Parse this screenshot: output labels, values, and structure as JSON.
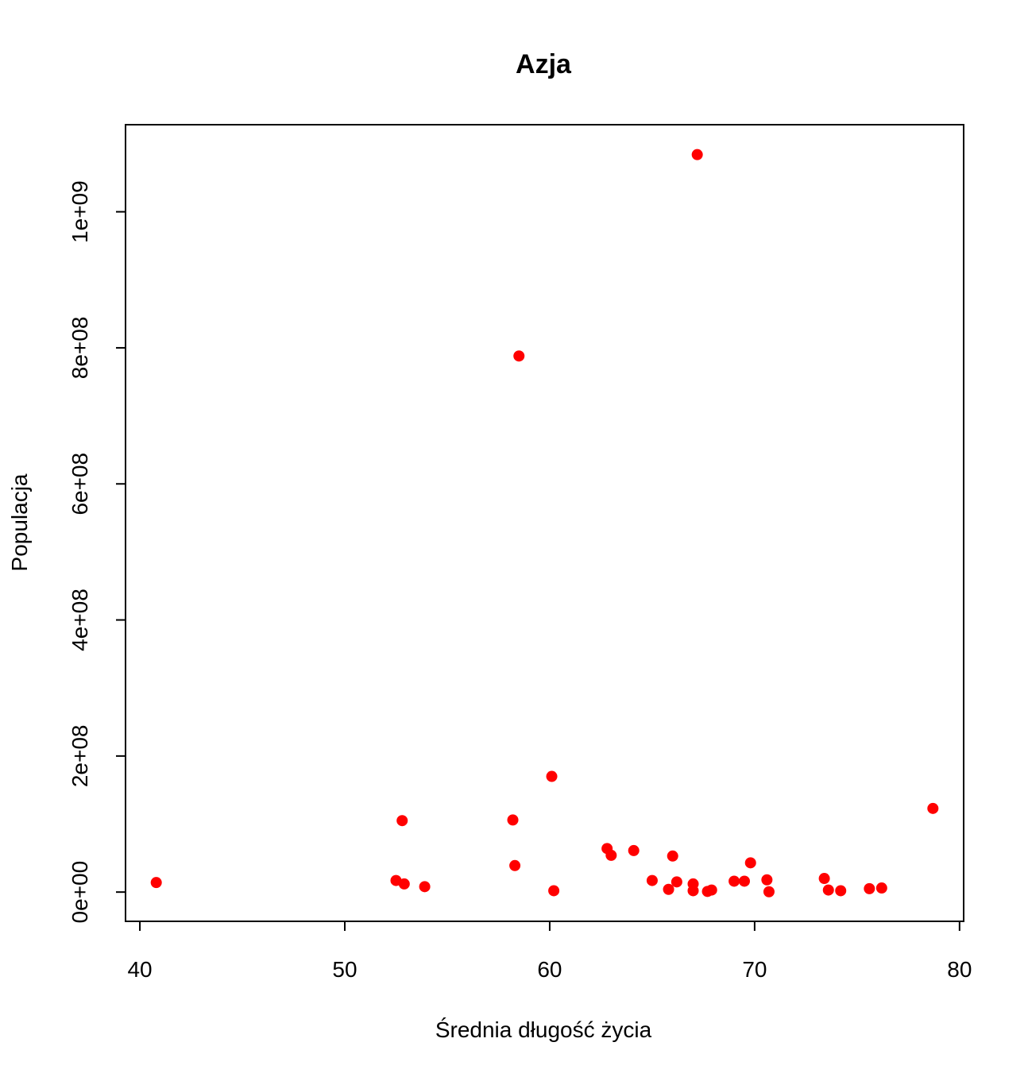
{
  "chart_data": {
    "type": "scatter",
    "title": "Azja",
    "xlabel": "Średnia długość życia",
    "ylabel": "Populacja",
    "xlim": [
      39.3,
      80.2
    ],
    "ylim": [
      -43000000,
      1128000000
    ],
    "x_ticks": [
      {
        "value": 40,
        "label": "40"
      },
      {
        "value": 50,
        "label": "50"
      },
      {
        "value": 60,
        "label": "60"
      },
      {
        "value": 70,
        "label": "70"
      },
      {
        "value": 80,
        "label": "80"
      }
    ],
    "y_ticks": [
      {
        "value": 0,
        "label": "0e+00"
      },
      {
        "value": 200000000,
        "label": "2e+08"
      },
      {
        "value": 400000000,
        "label": "4e+08"
      },
      {
        "value": 600000000,
        "label": "6e+08"
      },
      {
        "value": 800000000,
        "label": "8e+08"
      },
      {
        "value": 1000000000,
        "label": "1e+09"
      }
    ],
    "grid": false,
    "point_color": "#ff0000",
    "series": [
      {
        "points": [
          {
            "x": 40.8,
            "y": 14000000
          },
          {
            "x": 52.5,
            "y": 17000000
          },
          {
            "x": 52.8,
            "y": 105000000
          },
          {
            "x": 52.9,
            "y": 12000000
          },
          {
            "x": 53.9,
            "y": 8000000
          },
          {
            "x": 58.2,
            "y": 106000000
          },
          {
            "x": 58.3,
            "y": 39000000
          },
          {
            "x": 58.5,
            "y": 788000000
          },
          {
            "x": 60.1,
            "y": 170000000
          },
          {
            "x": 60.2,
            "y": 2000000
          },
          {
            "x": 62.8,
            "y": 64000000
          },
          {
            "x": 63.0,
            "y": 54000000
          },
          {
            "x": 64.1,
            "y": 61000000
          },
          {
            "x": 65.0,
            "y": 17000000
          },
          {
            "x": 65.8,
            "y": 4000000
          },
          {
            "x": 66.0,
            "y": 53000000
          },
          {
            "x": 66.2,
            "y": 15000000
          },
          {
            "x": 67.0,
            "y": 12000000
          },
          {
            "x": 67.0,
            "y": 2000000
          },
          {
            "x": 67.2,
            "y": 1084000000
          },
          {
            "x": 67.7,
            "y": 1000000
          },
          {
            "x": 67.9,
            "y": 3000000
          },
          {
            "x": 69.0,
            "y": 16000000
          },
          {
            "x": 69.5,
            "y": 16000000
          },
          {
            "x": 69.8,
            "y": 43000000
          },
          {
            "x": 70.6,
            "y": 18000000
          },
          {
            "x": 70.7,
            "y": 500000
          },
          {
            "x": 73.4,
            "y": 20000000
          },
          {
            "x": 73.6,
            "y": 3000000
          },
          {
            "x": 74.2,
            "y": 2000000
          },
          {
            "x": 75.6,
            "y": 5000000
          },
          {
            "x": 76.2,
            "y": 6000000
          },
          {
            "x": 78.7,
            "y": 123000000
          }
        ]
      }
    ]
  }
}
